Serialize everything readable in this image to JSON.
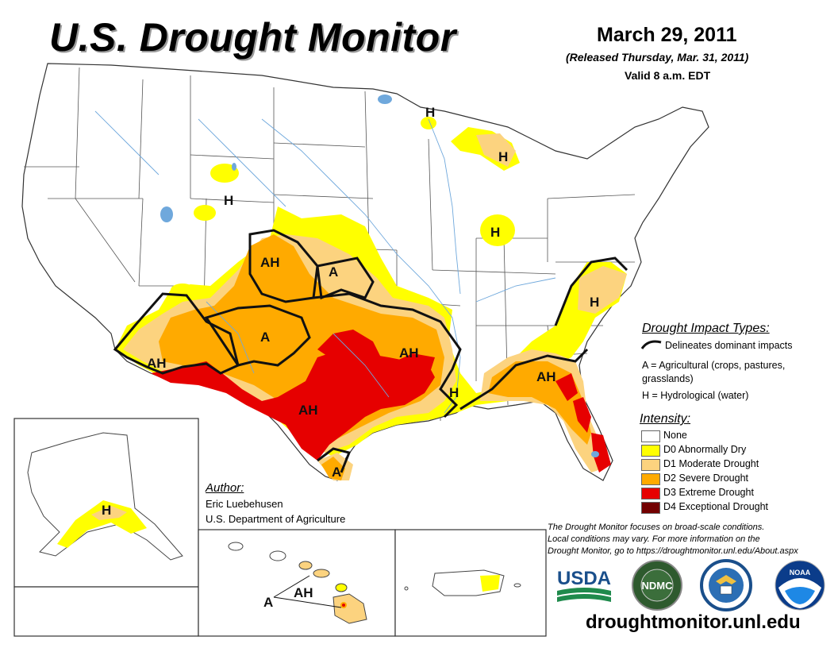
{
  "title": "U.S. Drought Monitor",
  "date": "March 29, 2011",
  "released": "(Released Thursday, Mar. 31, 2011)",
  "valid": "Valid 8 a.m. EDT",
  "impact_types": {
    "heading": "Drought Impact Types:",
    "delineates": "Delineates dominant impacts",
    "agricultural": "A = Agricultural (crops, pastures, grasslands)",
    "hydrological": "H = Hydrological (water)"
  },
  "intensity": {
    "heading": "Intensity:",
    "levels": [
      {
        "label": "None",
        "color": "#ffffff"
      },
      {
        "label": "D0 Abnormally Dry",
        "color": "#ffff00"
      },
      {
        "label": "D1 Moderate Drought",
        "color": "#fcd37f"
      },
      {
        "label": "D2 Severe Drought",
        "color": "#ffaa00"
      },
      {
        "label": "D3 Extreme Drought",
        "color": "#e60000"
      },
      {
        "label": "D4 Exceptional Drought",
        "color": "#730000"
      }
    ]
  },
  "author": {
    "heading": "Author:",
    "name": "Eric Luebehusen",
    "org": "U.S. Department of Agriculture"
  },
  "note": {
    "line1": "The Drought Monitor focuses on broad-scale conditions.",
    "line2": "Local conditions may vary. For more information on the",
    "line3": "Drought Monitor, go to https://droughtmonitor.unl.edu/About.aspx"
  },
  "url": "droughtmonitor.unl.edu",
  "map_labels": {
    "ah_southwest": "AH",
    "ah_colorado": "AH",
    "a_kansas": "A",
    "a_new_mexico": "A",
    "ah_oklahoma": "AH",
    "ah_texas": "AH",
    "a_south_texas": "A",
    "h_louisiana": "H",
    "ah_georgia": "AH",
    "h_virginia": "H",
    "h_wyoming": "H",
    "h_upper_michigan": "H",
    "h_michigan": "H",
    "h_illinois": "H",
    "h_alaska": "H",
    "ah_hawaii": "AH",
    "a_hawaii": "A"
  },
  "logos": {
    "usda": "USDA",
    "ndmc": "NDMC",
    "noaa": "NOAA"
  },
  "colors": {
    "d0": "#ffff00",
    "d1": "#fcd37f",
    "d2": "#ffaa00",
    "d3": "#e60000",
    "d4": "#730000",
    "water": "#6fa8dc",
    "border": "#555555",
    "usda_blue": "#1a4f8b",
    "usda_green": "#1f8a4c"
  }
}
